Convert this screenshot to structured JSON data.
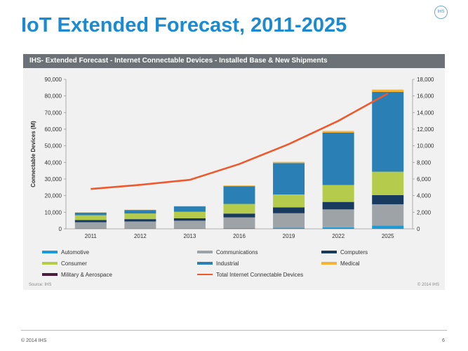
{
  "slide": {
    "title": "IoT Extended Forecast, 2011-2025",
    "logo_text": "IHS",
    "footer_copyright": "© 2014 IHS",
    "page_number": "6"
  },
  "panel": {
    "header": "IHS- Extended Forecast - Internet Connectable Devices - Installed Base & New Shipments",
    "source": "Source: IHS",
    "copyright": "© 2014 IHS"
  },
  "chart_data": {
    "type": "bar",
    "stacked": true,
    "categories": [
      "2011",
      "2012",
      "2013",
      "2016",
      "2019",
      "2022",
      "2025"
    ],
    "ylabel": "Connectable Devices (M)",
    "ylim": [
      0,
      90000
    ],
    "y_ticks": [
      "0",
      "10,000",
      "20,000",
      "30,000",
      "40,000",
      "50,000",
      "60,000",
      "70,000",
      "80,000",
      "90,000"
    ],
    "y2lim": [
      0,
      18000
    ],
    "y2_ticks": [
      "0",
      "2,000",
      "4,000",
      "6,000",
      "8,000",
      "10,000",
      "12,000",
      "14,000",
      "16,000",
      "18,000"
    ],
    "grid": false,
    "legend_position": "bottom",
    "series": [
      {
        "name": "Automotive",
        "color": "#1b9ad6",
        "values": [
          200,
          250,
          300,
          400,
          600,
          900,
          2000
        ]
      },
      {
        "name": "Communications",
        "color": "#9ea3a8",
        "values": [
          3800,
          4200,
          4600,
          6500,
          8800,
          10800,
          12800
        ]
      },
      {
        "name": "Computers",
        "color": "#173a5e",
        "values": [
          1300,
          1400,
          1500,
          2300,
          3500,
          4500,
          5500
        ]
      },
      {
        "name": "Consumer",
        "color": "#b5cb4b",
        "values": [
          2900,
          3400,
          3900,
          5800,
          7800,
          10200,
          14100
        ]
      },
      {
        "name": "Industrial",
        "color": "#2a7fb5",
        "values": [
          1600,
          2100,
          3200,
          10700,
          18900,
          31500,
          48000
        ]
      },
      {
        "name": "Medical",
        "color": "#f5b335",
        "values": [
          100,
          150,
          200,
          400,
          700,
          1000,
          1400
        ]
      },
      {
        "name": "Military & Aerospace",
        "color": "#4a1c3d",
        "values": [
          0,
          0,
          0,
          0,
          0,
          0,
          0
        ]
      }
    ],
    "line_series": {
      "name": "Total Internet Connectable Devices",
      "color": "#ec5a2e",
      "axis": "right",
      "values": [
        4800,
        5300,
        5900,
        7800,
        10200,
        13000,
        16300
      ]
    }
  }
}
